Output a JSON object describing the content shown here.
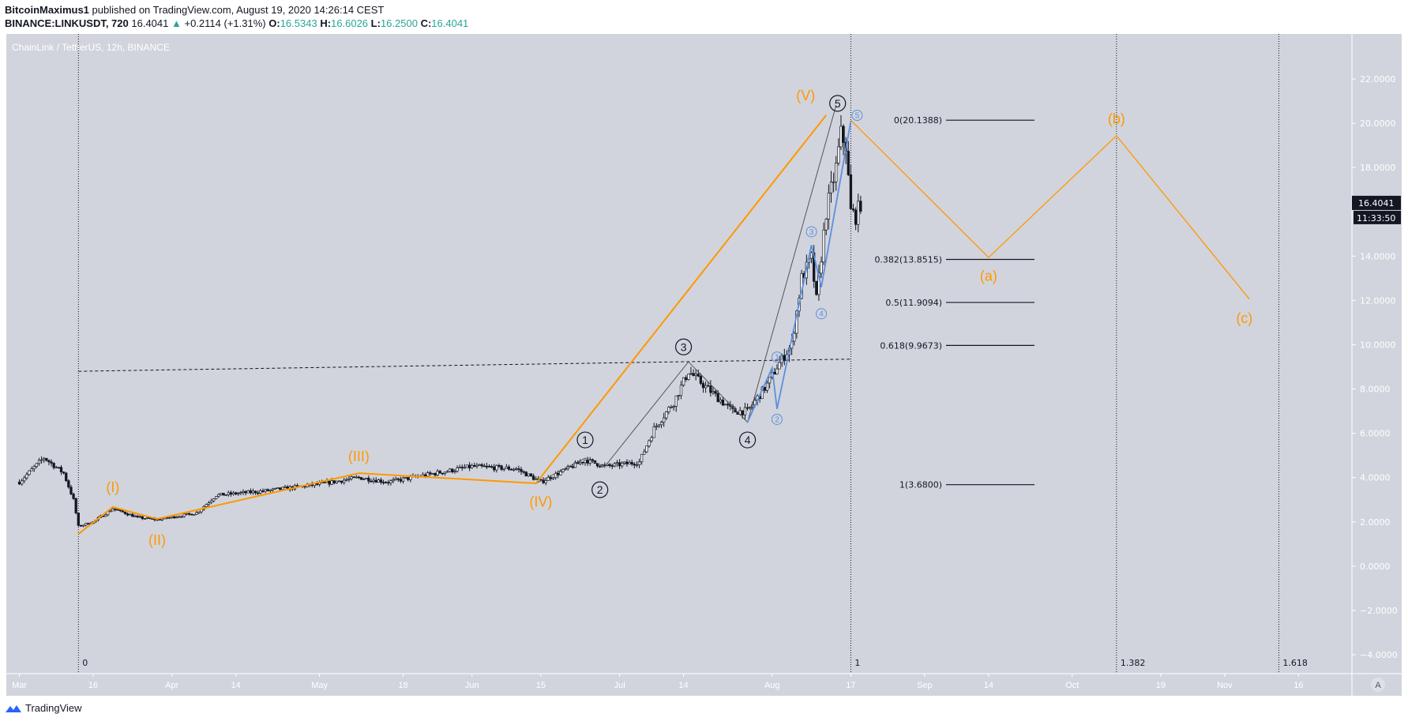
{
  "header": {
    "author": "BitcoinMaximus1",
    "published": "published on TradingView.com, August 19, 2020 14:26:14 CEST",
    "symbol": "BINANCE:LINKUSDT, 720",
    "last": "16.4041",
    "change": "+0.2114 (+1.31%)",
    "o_label": "O:",
    "o": "16.5343",
    "h_label": "H:",
    "h": "16.6026",
    "l_label": "L:",
    "l": "16.2500",
    "c_label": "C:",
    "c": "16.4041"
  },
  "footer": {
    "brand": "TradingView"
  },
  "colors": {
    "background": "#d1d4dc",
    "wave_orange": "#ff9800",
    "sub_wave_blue": "#5b8fe0",
    "up_candle": "#ffffff",
    "down_candle": "#131722",
    "accent_teal": "#26a69a"
  },
  "chart_data": {
    "type": "candlestick",
    "title": "ChainLink / TetherUS, 12h, BINANCE",
    "price_label": "16.4041",
    "countdown_label": "11:33:50",
    "auto_scale_label": "A",
    "ylim": [
      -4.6,
      23.5
    ],
    "y_ticks": [
      "22.0000",
      "20.0000",
      "18.0000",
      "14.0000",
      "12.0000",
      "10.0000",
      "8.0000",
      "6.0000",
      "4.0000",
      "2.0000",
      "0.0000",
      "−2.0000",
      "−4.0000"
    ],
    "y_tick_values": [
      22,
      20,
      18,
      14,
      12,
      10,
      8,
      6,
      4,
      2,
      0,
      -2,
      -4
    ],
    "x_ticks": [
      {
        "label": "Mar",
        "date": "2020-03-01"
      },
      {
        "label": "16",
        "date": "2020-03-16"
      },
      {
        "label": "Apr",
        "date": "2020-04-01"
      },
      {
        "label": "14",
        "date": "2020-04-14"
      },
      {
        "label": "May",
        "date": "2020-05-01"
      },
      {
        "label": "18",
        "date": "2020-05-18"
      },
      {
        "label": "Jun",
        "date": "2020-06-01"
      },
      {
        "label": "15",
        "date": "2020-06-15"
      },
      {
        "label": "Jul",
        "date": "2020-07-01"
      },
      {
        "label": "14",
        "date": "2020-07-14"
      },
      {
        "label": "Aug",
        "date": "2020-08-01"
      },
      {
        "label": "17",
        "date": "2020-08-17"
      },
      {
        "label": "Sep",
        "date": "2020-09-01"
      },
      {
        "label": "14",
        "date": "2020-09-14"
      },
      {
        "label": "Oct",
        "date": "2020-10-01"
      },
      {
        "label": "19",
        "date": "2020-10-19"
      },
      {
        "label": "Nov",
        "date": "2020-11-01"
      },
      {
        "label": "16",
        "date": "2020-11-16"
      }
    ],
    "price_path": [
      [
        "2020-03-01",
        3.8
      ],
      [
        "2020-03-06",
        4.9
      ],
      [
        "2020-03-10",
        4.2
      ],
      [
        "2020-03-12",
        3.0
      ],
      [
        "2020-03-13",
        1.8
      ],
      [
        "2020-03-16",
        2.0
      ],
      [
        "2020-03-20",
        2.6
      ],
      [
        "2020-03-25",
        2.2
      ],
      [
        "2020-03-29",
        2.1
      ],
      [
        "2020-04-06",
        2.4
      ],
      [
        "2020-04-10",
        3.2
      ],
      [
        "2020-04-20",
        3.4
      ],
      [
        "2020-05-01",
        3.7
      ],
      [
        "2020-05-09",
        4.0
      ],
      [
        "2020-05-15",
        3.8
      ],
      [
        "2020-06-01",
        4.5
      ],
      [
        "2020-06-10",
        4.4
      ],
      [
        "2020-06-15",
        3.8
      ],
      [
        "2020-06-24",
        4.8
      ],
      [
        "2020-06-28",
        4.5
      ],
      [
        "2020-07-05",
        4.7
      ],
      [
        "2020-07-08",
        6.2
      ],
      [
        "2020-07-12",
        7.4
      ],
      [
        "2020-07-15",
        8.8
      ],
      [
        "2020-07-20",
        7.8
      ],
      [
        "2020-07-24",
        7.0
      ],
      [
        "2020-07-27",
        7.0
      ],
      [
        "2020-07-31",
        8.2
      ],
      [
        "2020-08-02",
        9.0
      ],
      [
        "2020-08-05",
        10.0
      ],
      [
        "2020-08-07",
        13.0
      ],
      [
        "2020-08-09",
        13.9
      ],
      [
        "2020-08-10",
        12.0
      ],
      [
        "2020-08-12",
        16.0
      ],
      [
        "2020-08-14",
        18.0
      ],
      [
        "2020-08-15",
        19.5
      ],
      [
        "2020-08-16",
        19.0
      ],
      [
        "2020-08-17",
        16.0
      ],
      [
        "2020-08-18",
        15.8
      ],
      [
        "2020-08-19",
        16.4
      ]
    ],
    "orange_wave_line": [
      [
        "2020-03-13",
        1.45
      ],
      [
        "2020-03-20",
        2.67
      ],
      [
        "2020-03-29",
        2.13
      ],
      [
        "2020-05-09",
        4.2
      ],
      [
        "2020-06-14",
        3.74
      ],
      [
        "2020-08-12",
        20.37
      ]
    ],
    "orange_projection_line": [
      [
        "2020-08-17",
        20.14
      ],
      [
        "2020-09-14",
        13.94
      ],
      [
        "2020-10-10",
        19.44
      ],
      [
        "2020-11-06",
        12.06
      ]
    ],
    "black_wave_line": [
      [
        "2020-06-14",
        3.74
      ],
      [
        "2020-06-24",
        4.88
      ],
      [
        "2020-06-28",
        4.5
      ],
      [
        "2020-07-15",
        9.23
      ],
      [
        "2020-07-27",
        6.5
      ],
      [
        "2020-08-14",
        20.8
      ]
    ],
    "blue_wave_line": [
      [
        "2020-07-27",
        6.5
      ],
      [
        "2020-08-01",
        8.95
      ],
      [
        "2020-08-02",
        7.1
      ],
      [
        "2020-08-09",
        14.5
      ],
      [
        "2020-08-11",
        12.6
      ],
      [
        "2020-08-17",
        20.1
      ]
    ],
    "dashed_line": [
      [
        "2020-03-13",
        8.8
      ],
      [
        "2020-08-17",
        9.35
      ]
    ],
    "orange_labels": [
      {
        "text": "(I)",
        "date": "2020-03-20",
        "price": 3.56
      },
      {
        "text": "(II)",
        "date": "2020-03-29",
        "price": 1.17
      },
      {
        "text": "(III)",
        "date": "2020-05-09",
        "price": 4.96
      },
      {
        "text": "(IV)",
        "date": "2020-06-15",
        "price": 2.9
      },
      {
        "text": "(V)",
        "date": "2020-08-12",
        "price": 21.1
      },
      {
        "text": "(a)",
        "date": "2020-09-14",
        "price": 13.1
      },
      {
        "text": "(b)",
        "date": "2020-10-10",
        "price": 20.2
      },
      {
        "text": "(c)",
        "date": "2020-11-05",
        "price": 11.2
      }
    ],
    "black_circle_labels": [
      {
        "text": "1",
        "date": "2020-06-24",
        "price": 5.7
      },
      {
        "text": "2",
        "date": "2020-06-27",
        "price": 3.45
      },
      {
        "text": "3",
        "date": "2020-07-14",
        "price": 9.9
      },
      {
        "text": "4",
        "date": "2020-07-27",
        "price": 5.7
      },
      {
        "text": "5",
        "date": "2020-08-14",
        "price": 20.9
      }
    ],
    "blue_circle_labels": [
      {
        "text": "1",
        "date": "2020-08-02",
        "price": 9.44
      },
      {
        "text": "2",
        "date": "2020-08-02",
        "price": 6.63
      },
      {
        "text": "3",
        "date": "2020-08-09",
        "price": 15.1
      },
      {
        "text": "4",
        "date": "2020-08-11",
        "price": 11.4
      },
      {
        "text": "5",
        "date": "2020-08-17",
        "price": 20.5
      }
    ],
    "fib_retracement": [
      {
        "label": "0(20.1388)",
        "price": 20.1388
      },
      {
        "label": "0.382(13.8515)",
        "price": 13.8515
      },
      {
        "label": "0.5(11.9094)",
        "price": 11.9094
      },
      {
        "label": "0.618(9.9673)",
        "price": 9.9673
      },
      {
        "label": "1(3.6800)",
        "price": 3.68
      }
    ],
    "fib_time_lines": [
      {
        "label": "0",
        "date": "2020-03-13"
      },
      {
        "label": "1",
        "date": "2020-08-17"
      },
      {
        "label": "1.382",
        "date": "2020-10-10"
      },
      {
        "label": "1.618",
        "date": "2020-11-12"
      }
    ]
  }
}
